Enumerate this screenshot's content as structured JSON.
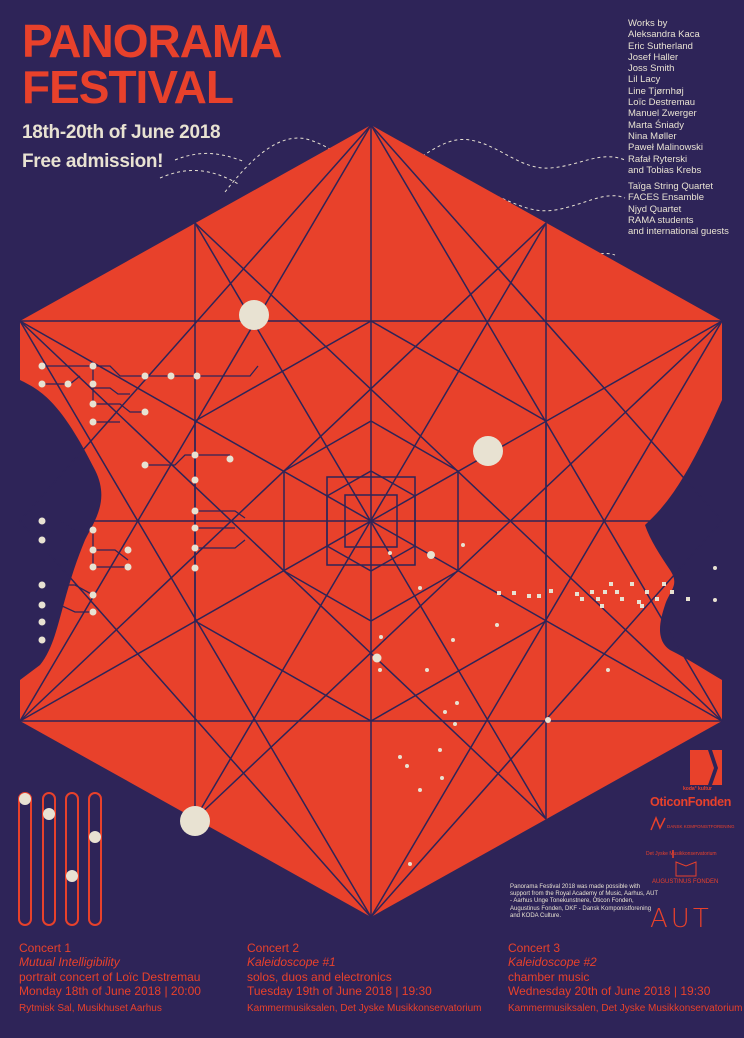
{
  "title": {
    "line1": "PANORAMA",
    "line2": "FESTIVAL"
  },
  "dates": "18th-20th of June 2018",
  "admission": "Free admission!",
  "works_by": {
    "heading": "Works by",
    "composers": [
      "Aleksandra Kaca",
      "Eric Sutherland",
      "Josef Haller",
      "Joss Smith",
      "Lil Lacy",
      "Line Tjørnhøj",
      "Loïc Destremau",
      "Manuel Zwerger",
      "Marta Śniady",
      "Nina Møller",
      "Paweł Malinowski",
      "Rafał Ryterski",
      "and Tobias Krebs"
    ]
  },
  "ensembles": [
    "Taïga String Quartet",
    "FACES Ensamble",
    "Njyd Quartet",
    "RAMA students",
    "and international guests"
  ],
  "concerts": [
    {
      "heading": "Concert 1",
      "title": "Mutual Intelligibility",
      "description": "portrait concert of Loïc Destremau",
      "date": "Monday 18th of June 2018 | 20:00",
      "venue": "Rytmisk Sal, Musikhuset Aarhus"
    },
    {
      "heading": "Concert 2",
      "title": "Kaleidoscope #1",
      "description": "solos, duos and electronics",
      "date": "Tuesday 19th of June 2018 | 19:30",
      "venue": "Kammermusiksalen, Det Jyske Musikkonservatorium"
    },
    {
      "heading": "Concert 3",
      "title": "Kaleidoscope #2",
      "description": "chamber music",
      "date": "Wednesday 20th of June 2018 | 19:30",
      "venue": "Kammermusiksalen, Det Jyske Musikkonservatorium"
    }
  ],
  "support_text": "Panorama Festival 2018 was made possible with support from the Royal Academy of Music, Aarhus, AUT - Aarhus Unge Tonekunstnere, Oticon Fonden, Augustinus Fonden, DKF - Dansk Komponistforening and KODA Culture.",
  "sponsors": {
    "koda": "koda° kultur",
    "oticon": "OticonFonden",
    "dkf": "DANSK KOMPONISTFORENING",
    "conservatory": "Det Jyske Musikkonservatorium",
    "augustinus": "AUGUSTINUS FONDEN",
    "aut": "AUT"
  },
  "colors": {
    "background": "#2e2458",
    "accent": "#e8412b",
    "cream": "#e8e2d2"
  }
}
